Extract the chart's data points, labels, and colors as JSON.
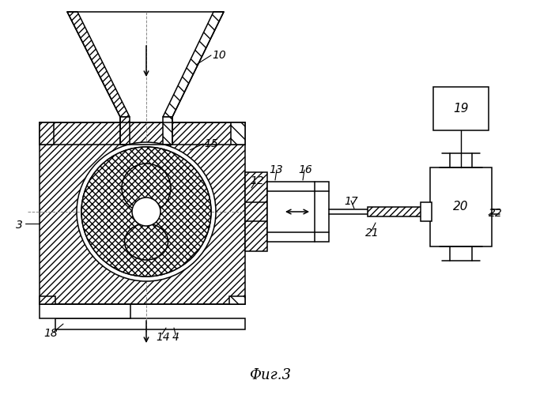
{
  "title": "Фиг.3",
  "bg_color": "#ffffff",
  "line_color": "#000000",
  "fig_width": 6.83,
  "fig_height": 5.0,
  "dpi": 100
}
